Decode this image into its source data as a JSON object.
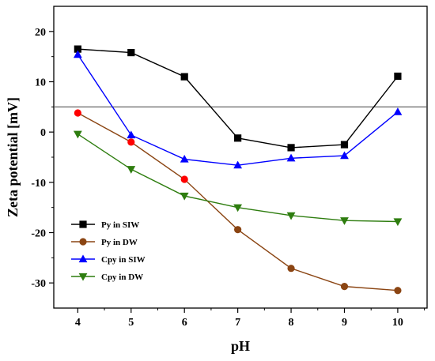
{
  "chart_data": {
    "type": "line",
    "title": "",
    "xlabel": "pH",
    "ylabel": "Zeta potential [mV]",
    "x": [
      4,
      5,
      6,
      7,
      8,
      9,
      10
    ],
    "xlim": [
      3.55,
      10.55
    ],
    "ylim": [
      -35,
      25
    ],
    "xticks": [
      4,
      5,
      6,
      7,
      8,
      9,
      10
    ],
    "yticks": [
      -30,
      -20,
      -10,
      0,
      10,
      20
    ],
    "reference_line_y": 5,
    "grid": false,
    "legend_position": "bottom-left",
    "series": [
      {
        "name": "Py in SIW",
        "marker": "square",
        "color": "#000000",
        "marker_color": "#000000",
        "values": [
          16.5,
          15.8,
          11.0,
          -1.2,
          -3.1,
          -2.5,
          11.1
        ]
      },
      {
        "name": "Py in DW",
        "marker": "circle",
        "color": "#8b4513",
        "marker_color": "#ff0000",
        "marker_color_later": "#8b4513",
        "values": [
          3.8,
          -2.0,
          -9.4,
          -19.4,
          -27.1,
          -30.7,
          -31.5
        ]
      },
      {
        "name": "Cpy in SIW",
        "marker": "triangle-up",
        "color": "#0000ff",
        "marker_color": "#0000ff",
        "values": [
          15.4,
          -0.6,
          -5.4,
          -6.6,
          -5.2,
          -4.7,
          4.0
        ]
      },
      {
        "name": "Cpy in DW",
        "marker": "triangle-down",
        "color": "#2e7d0f",
        "marker_color": "#2e7d0f",
        "values": [
          -0.4,
          -7.4,
          -12.7,
          -15.0,
          -16.6,
          -17.6,
          -17.8
        ]
      }
    ]
  }
}
